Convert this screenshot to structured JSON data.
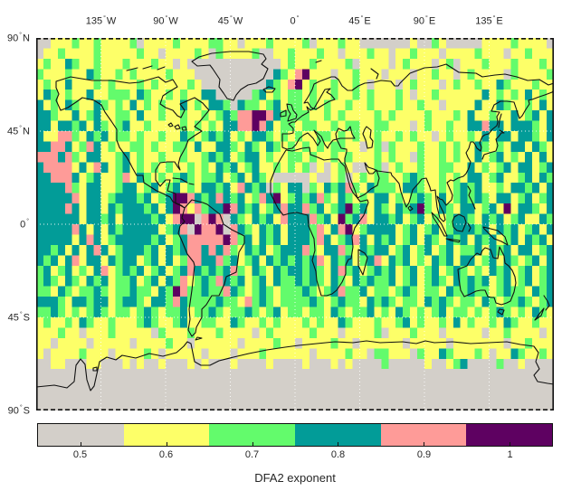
{
  "window": {
    "background": "#ffffff"
  },
  "map": {
    "x_ticks": [
      {
        "label": "135°W",
        "lon": -135
      },
      {
        "label": "90°W",
        "lon": -90
      },
      {
        "label": "45°W",
        "lon": -45
      },
      {
        "label": "0°",
        "lon": 0
      },
      {
        "label": "45°E",
        "lon": 45
      },
      {
        "label": "90°E",
        "lon": 90
      },
      {
        "label": "135°E",
        "lon": 135
      }
    ],
    "y_ticks": [
      {
        "label": "90°N",
        "lat": 90
      },
      {
        "label": "45°N",
        "lat": 45
      },
      {
        "label": "0°",
        "lat": 0
      },
      {
        "label": "45°S",
        "lat": -45
      },
      {
        "label": "90°S",
        "lat": -90
      }
    ]
  },
  "colorbar": {
    "label": "DFA2 exponent",
    "tick_labels": [
      "0.5",
      "0.6",
      "0.7",
      "0.8",
      "0.9",
      "1"
    ],
    "colors": [
      "#d3cfc9",
      "#fdff68",
      "#63fb6c",
      "#029c98",
      "#fe9b98",
      "#5e0161"
    ]
  },
  "chart_data": {
    "type": "heatmap",
    "title": "",
    "colorbar_label": "DFA2 exponent",
    "legend_position": "bottom",
    "projection": "equirectangular world map with coastlines",
    "lon_range": [
      -180,
      180
    ],
    "lat_range": [
      -90,
      90
    ],
    "cell_size_deg": 5,
    "grid_cols": 72,
    "grid_rows": 36,
    "gridlines": {
      "lons": [
        -135,
        -90,
        -45,
        0,
        45,
        90,
        135
      ],
      "lats": [
        45,
        0,
        -45
      ]
    },
    "bins": [
      {
        "value": 0.5,
        "color": "#d3cfc9"
      },
      {
        "value": 0.6,
        "color": "#fdff68"
      },
      {
        "value": 0.7,
        "color": "#63fb6c"
      },
      {
        "value": 0.8,
        "color": "#029c98"
      },
      {
        "value": 0.9,
        "color": "#fe9b98"
      },
      {
        "value": 1.0,
        "color": "#5e0161"
      }
    ],
    "palette": {
      "g": {
        "value": 0.5,
        "color": "#d3cfc9"
      },
      "y": {
        "value": 0.6,
        "color": "#fdff68"
      },
      "e": {
        "value": 0.7,
        "color": "#63fb6c"
      },
      "t": {
        "value": 0.8,
        "color": "#029c98"
      },
      "p": {
        "value": 0.9,
        "color": "#fe9b98"
      },
      "u": {
        "value": 1.0,
        "color": "#5e0161"
      }
    },
    "cells": [
      "ggyyyeyyeyyyyegyyyyeyyyyeeyygyyyeyyyyegyyyeyygggggggyggeygggggyyyyeyyyyg",
      "gyyeyyyyeyyyyyeyygyyyyeygeyyyyeggyyeyyyeyygyyyeyygyyeyyygyyyyeyyygyyeyyy",
      "yeyyteyyeyyyeyyyeyygygggggggggggggyeyyeyyyyegyyyygyeyyygyegyyyeyyyeyyyey",
      "eyyyeyyteyyeyeyyyyeyyygggggggggggteypuyyygyyeyyygyyygyyeyygyeyyyygeyyyye",
      "yeyytyyyeyeyyyeyeyyyyeygggggggggteypuyeyyeyyeygyyygyeyyygyeyyeyyteyyyeyy",
      "yteyeyytyyeeeyteyyeyeyyttgggggetyeyeeyeyyeyyeyeyyyeygyyeyyyyyytyeyeytyey",
      "tyeyteyyteyeytyeyeyytyeyttegteeyetyeeyeyeyyeyyeyyyeyyeyygyyyytyyteyyeyty",
      "tteyytyetyyeeytyyeyyeyyeyeteppuupteeeeyyeyeyyyyeyeyyyyeyyyeytyyeyytyetyt",
      "ttyttetyteyetyyeyyyyeyeyeyttppuptyeeyeeyyeyeeyyeeyyygyeyyeyyttpttyttteyt",
      "tyyppeytetyeeyeyyeyyteyetetyeytteyeyeyyeeyeyeyyeyyeyeyygyeyyeytyttytteyt",
      "ttpptyeptyeyyeeyeyyeeytyytteyteyteyeyeyeyeeyygyegeyyyeyyeyeyyteyeyttytey",
      "ppptpeyttyyetyeyyeyyeyyetetyettyeyyeeyeyyeyeyyyeyeyygeyyeyeyytyetyeytyty",
      "tppppytyptyetyeyeyeyyeyeytetyetyyeyeyegygyeyggyegyeyyeyyeeyytyeyetyttyet",
      "ttppptyetyyepyteyeyeteyeetyetyteygggggyggyegyeyeeyyeteyyeyeyttyetyyetyte",
      "ttttpeyttyyettyetyetyeyttetyptetgeyttgeytetpeyteeeytteyyeyetetyyeyttetyt",
      "tttttpyttyetttetyetuuptetptetyeptuyetetpeyteyeyttyeyeteytyeteteyttyetyet",
      "ttttptyttytetttetytupypettuptetyetpttpetyetuetyteytetueyteyttyetyuytteyt",
      "ttttttyttetyttttetypuugpupgteytetyptttpetyuetpyttetyetyeyetteytetyetyyte",
      "tttttptytytetttttyetpguppugpteytetytttepytpuyettttyetyetyetttetytetyetyt",
      "tttttytptyetttttetyetpppppupetytetyttteptyetptytetyetyteytetytetyetytety",
      "ttetytytptyetttetytetpptptpeytetyetttpeyttpeytettyetyetyetyeetytetyttyet",
      "tetytpyttytettyetytyeppttpetyetytetetetpytetyetpytetyeytetyttyetyteyetyt",
      "etyetyeytpyetetyetyetptetetpeyteytetteteytpetyetetyetyetyeteyeytetyetyety",
      "eteyteytetyeetyetytepyeteptetyetyteeteteyteyteteetyetyeteytetetyetyetyet",
      "eeyteyeeteyeeteeyteupeeteepteyeteyeeeteyetpeetyeeyeteyeeyteeteeyeteeytet",
      "ttteyttettyetteyttepteeeeteeypeteyeeeeteyeteeyteteyeeyteteyeeyteyeeteyet",
      "eeteyeyeteyeeyeteyeetyeeteyeeteyetyeeyeeyteyeetyeyteyeyetyeeyeyeteyeytey",
      "yeyyeyteyyeyyyeteyyetyyeeyyteyyeyeyyyeyeyyteyyyeyyetyeyyeytyeyyeyteyyeyy",
      "yyyeyygyyyeyyyyygeyyyeyyyeyyyygyeyyyyyeyyygyyyyegyyyeyyygyyyyygyyeyyyygy",
      "yygyyyygyyyyygyyyyeyygyyyyyygyyyyeyygyyyyeyygyyyyyygyyyyygyyyyyyygyyeyyy",
      "ygyyyyeyyygyyyyeygyyyyygyyygyyyeyyyyyygyyyyeyygeeyyygeyyteyyyeygyyteyyey",
      "ggyygggyygggygyggygggygygggyggggyggggygggygyggggegggggyggyetggggeggyggggyg",
      "gggggggggggggggggggggggggggggggggggggggggggggggggggggggggggggggggggggggg",
      "gggggggggggggggggggggggggggggggggggggggggggggggggggggggggggggggggggggggg",
      "gggggggggggggggggggggggggggggggggggggggggggggggggggggggggggggggggggggggg",
      "gggggggggggggggggggggggggggggggggggggggggggggggggggggggggggggggggggggggg"
    ]
  }
}
